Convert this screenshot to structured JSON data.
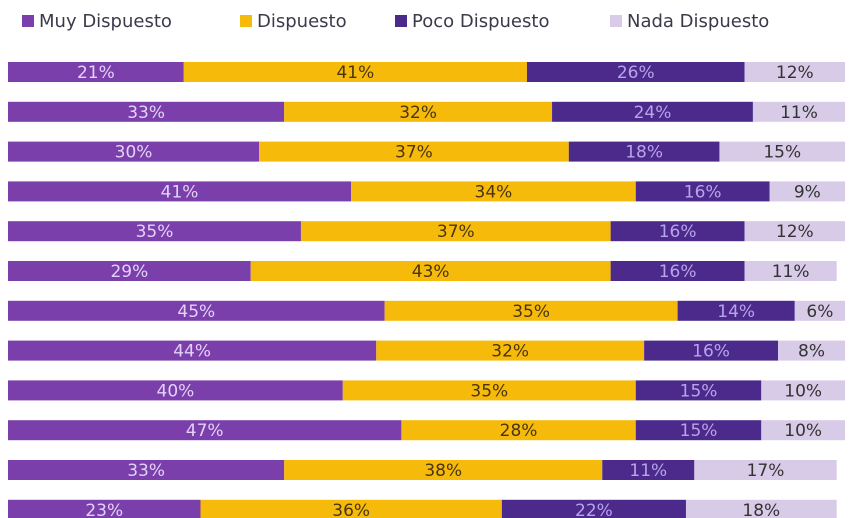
{
  "chart_data": {
    "type": "stacked-bar-horizontal",
    "categories": [
      null,
      null,
      null,
      null,
      null,
      null,
      null,
      null,
      null,
      null,
      null,
      null
    ],
    "xlim": [
      0,
      100
    ],
    "legend": "top",
    "series": [
      {
        "name": "Muy Dispuesto",
        "color": "#7b3fab",
        "values": [
          21,
          33,
          30,
          41,
          35,
          29,
          45,
          44,
          40,
          47,
          33,
          23
        ],
        "value_labels": [
          "21%",
          "33%",
          "30%",
          "41%",
          "35%",
          "29%",
          "45%",
          "44%",
          "40%",
          "47%",
          "33%",
          "23%"
        ]
      },
      {
        "name": "Dispuesto",
        "color": "#f6bb0a",
        "values": [
          41,
          32,
          37,
          34,
          37,
          43,
          35,
          32,
          35,
          28,
          38,
          36
        ],
        "value_labels": [
          "41%",
          "32%",
          "37%",
          "34%",
          "37%",
          "43%",
          "35%",
          "32%",
          "35%",
          "28%",
          "38%",
          "36%"
        ]
      },
      {
        "name": "Poco Dispuesto",
        "color": "#4b2a8c",
        "values": [
          26,
          24,
          18,
          16,
          16,
          16,
          14,
          16,
          15,
          15,
          11,
          22
        ],
        "value_labels": [
          "26%",
          "24%",
          "18%",
          "16%",
          "16%",
          "16%",
          "14%",
          "16%",
          "15%",
          "15%",
          "11%",
          "22%"
        ]
      },
      {
        "name": "Nada Dispuesto",
        "color": "#d8cbe8",
        "values": [
          12,
          11,
          15,
          9,
          12,
          11,
          6,
          8,
          10,
          10,
          17,
          18
        ],
        "value_labels": [
          "12%",
          "11%",
          "15%",
          "9%",
          "12%",
          "11%",
          "6%",
          "8%",
          "10%",
          "10%",
          "17%",
          "18%"
        ]
      }
    ]
  }
}
